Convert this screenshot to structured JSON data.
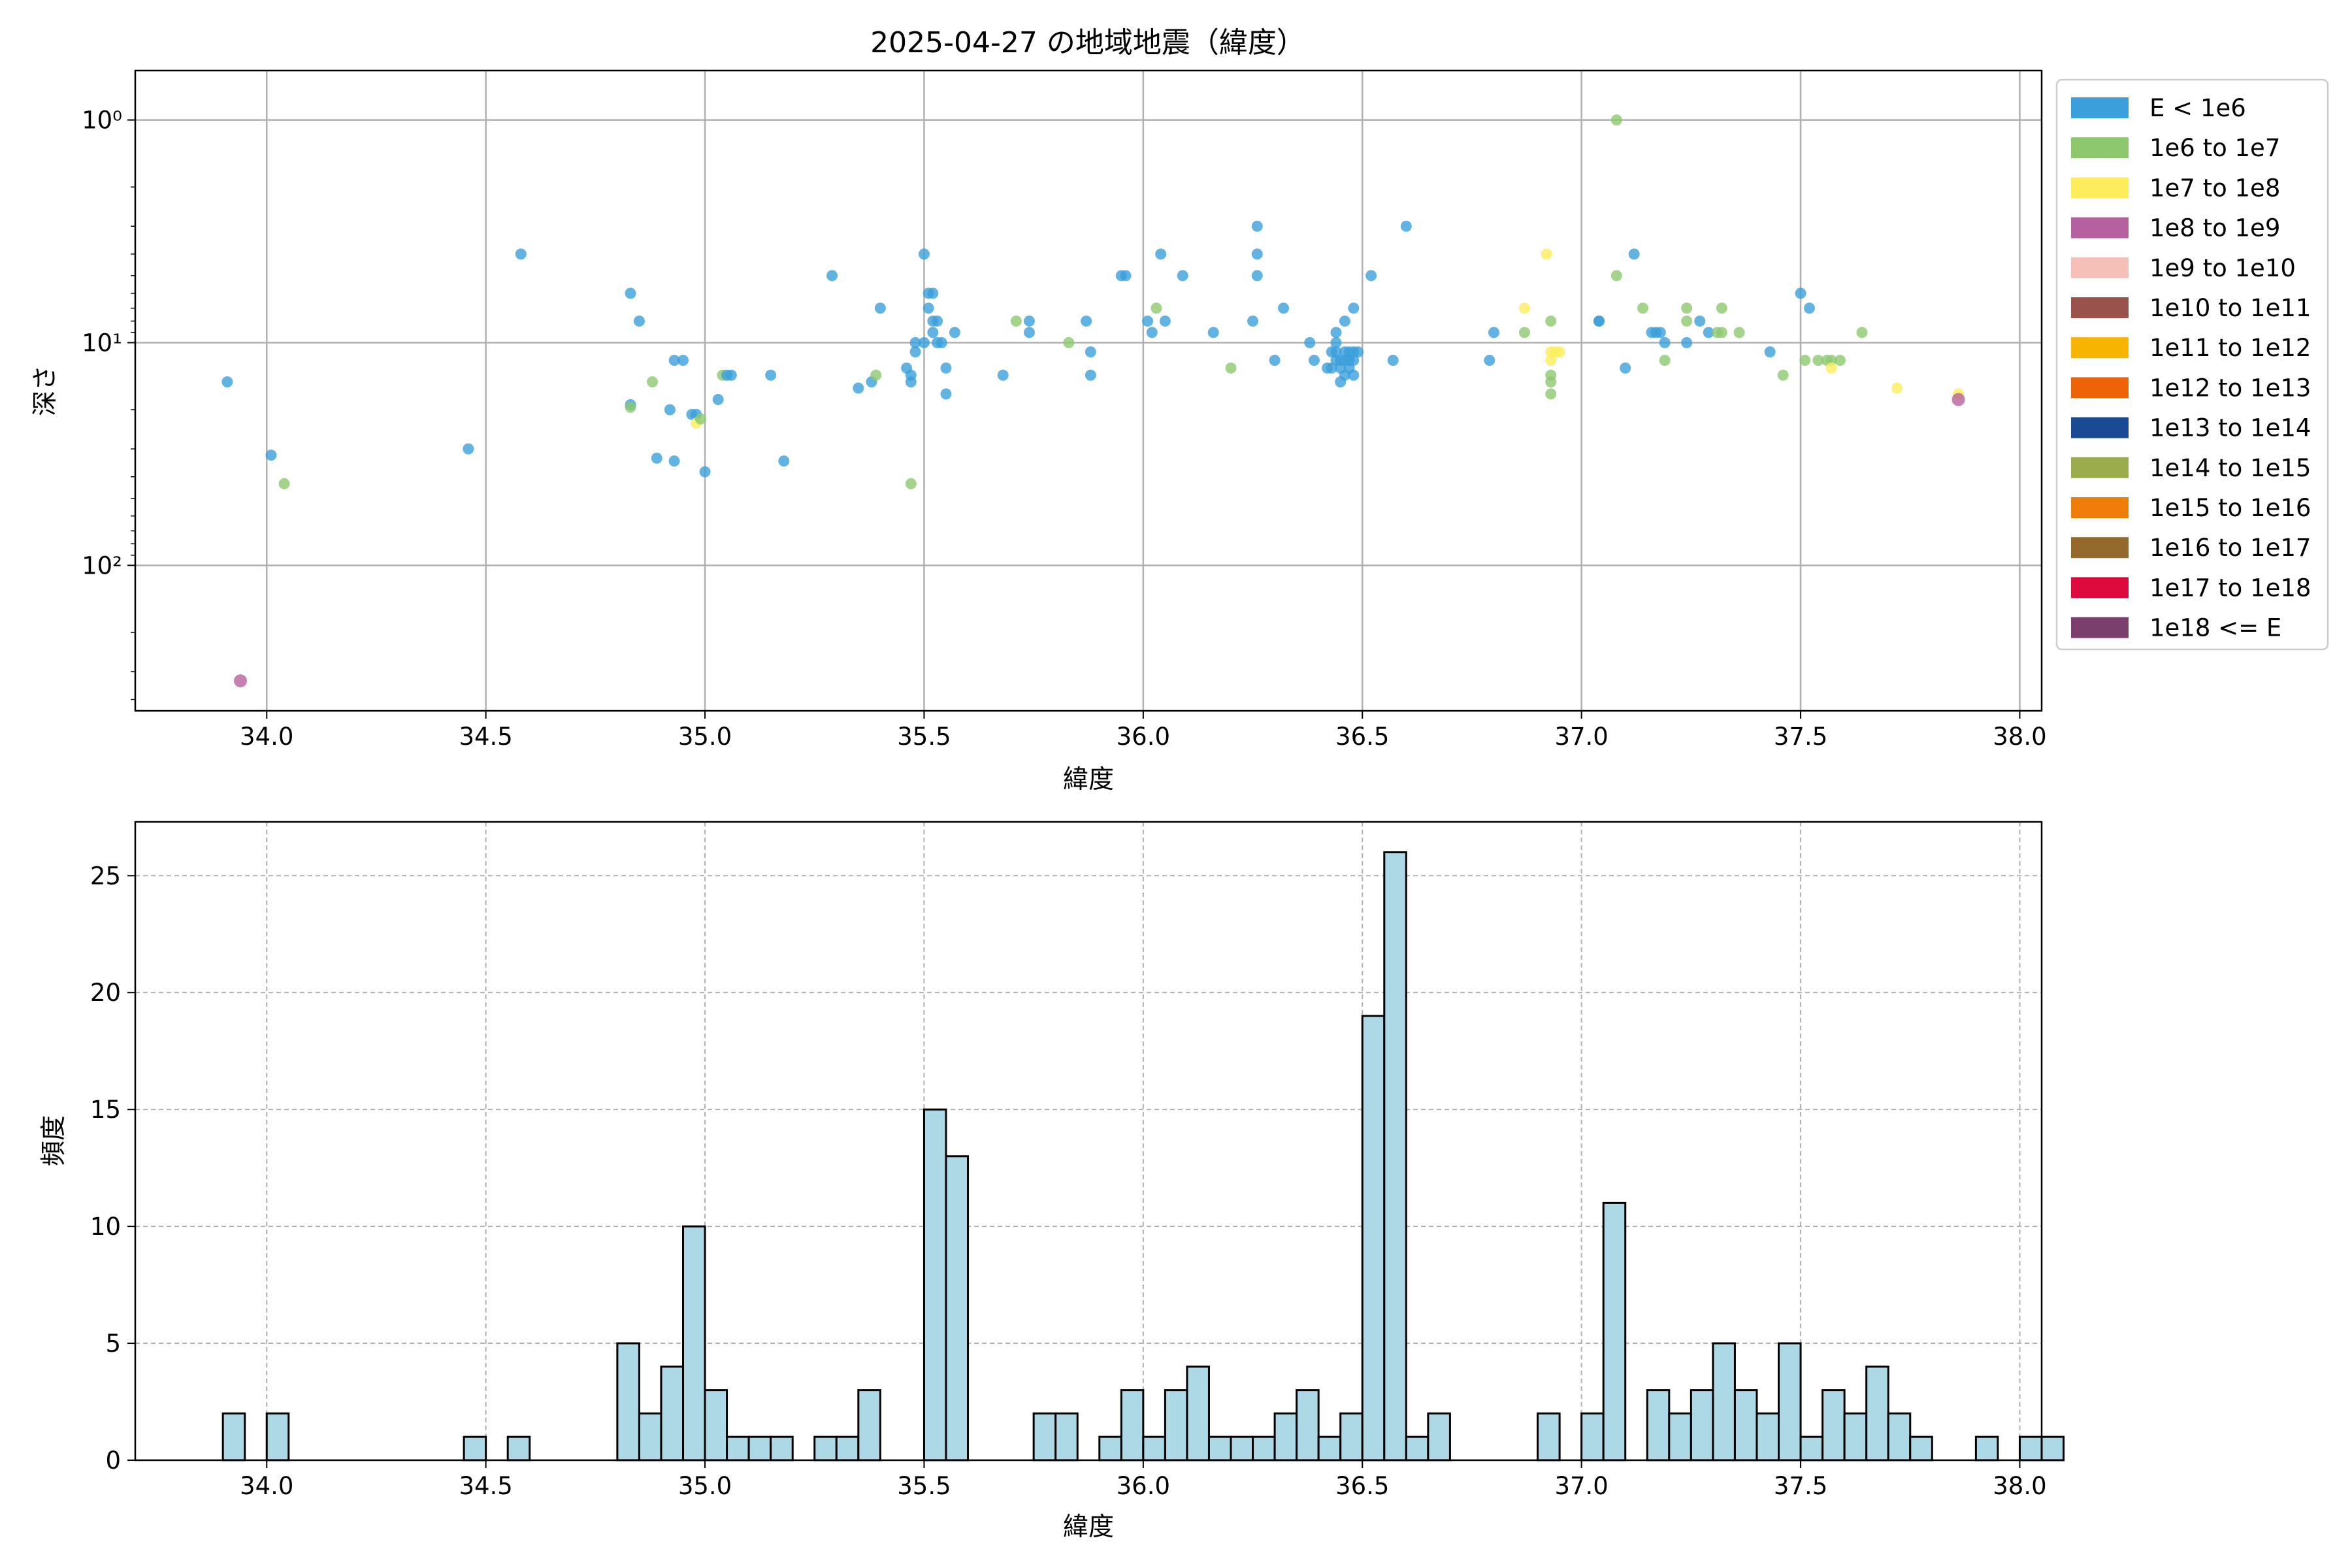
{
  "chart_data": [
    {
      "type": "scatter",
      "title": "2025-04-27 の地域地震（緯度）",
      "xlabel": "緯度",
      "ylabel": "深さ",
      "xlim": [
        33.7,
        38.05
      ],
      "ylim": [
        450,
        0.6
      ],
      "yscale": "log",
      "y_inverted": true,
      "grid": true,
      "x_ticks": [
        34.0,
        34.5,
        35.0,
        35.5,
        36.0,
        36.5,
        37.0,
        37.5,
        38.0
      ],
      "x_tick_labels": [
        "34.0",
        "34.5",
        "35.0",
        "35.5",
        "36.0",
        "36.5",
        "37.0",
        "37.5",
        "38.0"
      ],
      "y_ticks": [
        1,
        10,
        100
      ],
      "y_tick_labels": [
        "10⁰",
        "10¹",
        "10²"
      ],
      "legend_position": "outside-right",
      "legend": [
        {
          "label": "E < 1e6",
          "color": "#3b9fdb"
        },
        {
          "label": "1e6 to 1e7",
          "color": "#8dc86f"
        },
        {
          "label": "1e7 to 1e8",
          "color": "#fded5c"
        },
        {
          "label": "1e8 to 1e9",
          "color": "#b5619f"
        },
        {
          "label": "1e9 to 1e10",
          "color": "#f5c0b8"
        },
        {
          "label": "1e10 to 1e11",
          "color": "#9a524d"
        },
        {
          "label": "1e11 to 1e12",
          "color": "#f7b400"
        },
        {
          "label": "1e12 to 1e13",
          "color": "#ee6208"
        },
        {
          "label": "1e13 to 1e14",
          "color": "#1b4a94"
        },
        {
          "label": "1e14 to 1e15",
          "color": "#9bac4d"
        },
        {
          "label": "1e15 to 1e16",
          "color": "#ee7d0a"
        },
        {
          "label": "1e16 to 1e17",
          "color": "#936a2b"
        },
        {
          "label": "1e17 to 1e18",
          "color": "#dd0a3e"
        },
        {
          "label": "1e18 <= E",
          "color": "#7b3f6e"
        }
      ],
      "points": [
        [
          33.91,
          15,
          0
        ],
        [
          34.01,
          32,
          0
        ],
        [
          34.04,
          43,
          1
        ],
        [
          33.94,
          330,
          3
        ],
        [
          34.46,
          30,
          0
        ],
        [
          34.58,
          4,
          0
        ],
        [
          34.83,
          6,
          0
        ],
        [
          34.85,
          8,
          0
        ],
        [
          34.83,
          19,
          0
        ],
        [
          34.83,
          19.5,
          1
        ],
        [
          34.88,
          15,
          1
        ],
        [
          34.89,
          33,
          0
        ],
        [
          34.92,
          20,
          0
        ],
        [
          34.93,
          34,
          0
        ],
        [
          34.93,
          12,
          0
        ],
        [
          34.95,
          12,
          0
        ],
        [
          34.97,
          21,
          0
        ],
        [
          34.98,
          21,
          0
        ],
        [
          34.98,
          23,
          2
        ],
        [
          34.99,
          22,
          1
        ],
        [
          35.0,
          38,
          0
        ],
        [
          35.03,
          18,
          0
        ],
        [
          35.04,
          14,
          1
        ],
        [
          35.05,
          14,
          0
        ],
        [
          35.06,
          14,
          0
        ],
        [
          35.15,
          14,
          0
        ],
        [
          35.18,
          34,
          0
        ],
        [
          35.29,
          5,
          0
        ],
        [
          35.35,
          16,
          0
        ],
        [
          35.38,
          15,
          0
        ],
        [
          35.39,
          14,
          1
        ],
        [
          35.4,
          7,
          0
        ],
        [
          35.46,
          13,
          0
        ],
        [
          35.47,
          14,
          0
        ],
        [
          35.47,
          15,
          0
        ],
        [
          35.47,
          43,
          1
        ],
        [
          35.48,
          10,
          0
        ],
        [
          35.48,
          11,
          0
        ],
        [
          35.5,
          4,
          0
        ],
        [
          35.5,
          10,
          0
        ],
        [
          35.51,
          6,
          0
        ],
        [
          35.51,
          7,
          0
        ],
        [
          35.52,
          6,
          0
        ],
        [
          35.52,
          8,
          0
        ],
        [
          35.52,
          9,
          0
        ],
        [
          35.53,
          8,
          0
        ],
        [
          35.53,
          10,
          0
        ],
        [
          35.54,
          10,
          0
        ],
        [
          35.55,
          13,
          0
        ],
        [
          35.55,
          17,
          0
        ],
        [
          35.57,
          9,
          0
        ],
        [
          35.68,
          14,
          0
        ],
        [
          35.71,
          8,
          1
        ],
        [
          35.74,
          8,
          0
        ],
        [
          35.74,
          9,
          0
        ],
        [
          35.83,
          10,
          1
        ],
        [
          35.87,
          8,
          0
        ],
        [
          35.88,
          11,
          0
        ],
        [
          35.88,
          14,
          0
        ],
        [
          35.95,
          5,
          0
        ],
        [
          35.96,
          5,
          0
        ],
        [
          36.01,
          8,
          0
        ],
        [
          36.02,
          9,
          0
        ],
        [
          36.03,
          7,
          1
        ],
        [
          36.04,
          4,
          0
        ],
        [
          36.05,
          8,
          0
        ],
        [
          36.09,
          5,
          0
        ],
        [
          36.16,
          9,
          0
        ],
        [
          36.2,
          13,
          1
        ],
        [
          36.25,
          8,
          0
        ],
        [
          36.26,
          3,
          0
        ],
        [
          36.26,
          4,
          0
        ],
        [
          36.26,
          5,
          0
        ],
        [
          36.3,
          12,
          0
        ],
        [
          36.32,
          7,
          0
        ],
        [
          36.38,
          10,
          0
        ],
        [
          36.39,
          12,
          0
        ],
        [
          36.42,
          13,
          0
        ],
        [
          36.43,
          11,
          0
        ],
        [
          36.43,
          13,
          0
        ],
        [
          36.44,
          9,
          0
        ],
        [
          36.44,
          10,
          0
        ],
        [
          36.44,
          11,
          0
        ],
        [
          36.44,
          12,
          0
        ],
        [
          36.45,
          12,
          0
        ],
        [
          36.45,
          13,
          0
        ],
        [
          36.45,
          15,
          0
        ],
        [
          36.46,
          8,
          0
        ],
        [
          36.46,
          11,
          0
        ],
        [
          36.46,
          12,
          0
        ],
        [
          36.46,
          14,
          0
        ],
        [
          36.47,
          11,
          0
        ],
        [
          36.47,
          12,
          0
        ],
        [
          36.47,
          13,
          0
        ],
        [
          36.48,
          7,
          0
        ],
        [
          36.48,
          11,
          0
        ],
        [
          36.48,
          12,
          0
        ],
        [
          36.48,
          14,
          0
        ],
        [
          36.49,
          11,
          0
        ],
        [
          36.52,
          5,
          0
        ],
        [
          36.57,
          12,
          0
        ],
        [
          36.6,
          3,
          0
        ],
        [
          36.79,
          12,
          0
        ],
        [
          36.8,
          9,
          0
        ],
        [
          36.87,
          7,
          2
        ],
        [
          36.87,
          9,
          1
        ],
        [
          36.92,
          4,
          2
        ],
        [
          36.93,
          8,
          1
        ],
        [
          36.93,
          11,
          2
        ],
        [
          36.93,
          12,
          2
        ],
        [
          36.93,
          14,
          1
        ],
        [
          36.93,
          15,
          1
        ],
        [
          36.93,
          17,
          1
        ],
        [
          36.94,
          11,
          2
        ],
        [
          36.95,
          11,
          2
        ],
        [
          37.04,
          8,
          0
        ],
        [
          37.04,
          8,
          0
        ],
        [
          37.08,
          1.0,
          1
        ],
        [
          37.08,
          5,
          1
        ],
        [
          37.1,
          13,
          0
        ],
        [
          37.12,
          4,
          0
        ],
        [
          37.14,
          7,
          1
        ],
        [
          37.16,
          9,
          0
        ],
        [
          37.17,
          9,
          0
        ],
        [
          37.18,
          9,
          0
        ],
        [
          37.19,
          10,
          0
        ],
        [
          37.19,
          12,
          1
        ],
        [
          37.24,
          7,
          1
        ],
        [
          37.24,
          8,
          1
        ],
        [
          37.24,
          10,
          0
        ],
        [
          37.27,
          8,
          0
        ],
        [
          37.29,
          9,
          0
        ],
        [
          37.31,
          9,
          1
        ],
        [
          37.32,
          7,
          1
        ],
        [
          37.32,
          9,
          1
        ],
        [
          37.36,
          9,
          1
        ],
        [
          37.43,
          11,
          0
        ],
        [
          37.46,
          14,
          1
        ],
        [
          37.5,
          6,
          0
        ],
        [
          37.51,
          12,
          1
        ],
        [
          37.52,
          7,
          0
        ],
        [
          37.54,
          12,
          1
        ],
        [
          37.56,
          12,
          1
        ],
        [
          37.57,
          12,
          1
        ],
        [
          37.57,
          13,
          2
        ],
        [
          37.59,
          12,
          1
        ],
        [
          37.64,
          9,
          1
        ],
        [
          37.72,
          16,
          2
        ],
        [
          37.86,
          17,
          2
        ],
        [
          37.86,
          18,
          3
        ]
      ]
    },
    {
      "type": "bar",
      "title": "",
      "xlabel": "緯度",
      "ylabel": "頻度",
      "xlim": [
        33.7,
        38.05
      ],
      "ylim": [
        0,
        27.3
      ],
      "grid": true,
      "bin_start": 33.9,
      "bin_width": 0.05,
      "x_ticks": [
        34.0,
        34.5,
        35.0,
        35.5,
        36.0,
        36.5,
        37.0,
        37.5,
        38.0
      ],
      "x_tick_labels": [
        "34.0",
        "34.5",
        "35.0",
        "35.5",
        "36.0",
        "36.5",
        "37.0",
        "37.5",
        "38.0"
      ],
      "y_ticks": [
        0,
        5,
        10,
        15,
        20,
        25
      ],
      "y_tick_labels": [
        "0",
        "5",
        "10",
        "15",
        "20",
        "25"
      ],
      "bar_color": "#add8e6",
      "values": [
        2,
        0,
        2,
        0,
        0,
        0,
        0,
        0,
        0,
        0,
        0,
        1,
        0,
        1,
        0,
        0,
        0,
        0,
        5,
        2,
        4,
        10,
        3,
        1,
        1,
        1,
        0,
        1,
        1,
        3,
        0,
        0,
        15,
        13,
        0,
        0,
        0,
        2,
        2,
        0,
        1,
        3,
        1,
        3,
        4,
        1,
        1,
        1,
        2,
        3,
        1,
        2,
        19,
        26,
        1,
        2,
        0,
        0,
        0,
        0,
        2,
        0,
        2,
        11,
        0,
        3,
        2,
        3,
        5,
        3,
        2,
        5,
        1,
        3,
        2,
        4,
        2,
        1,
        0,
        0,
        1,
        0,
        1,
        1
      ]
    }
  ]
}
